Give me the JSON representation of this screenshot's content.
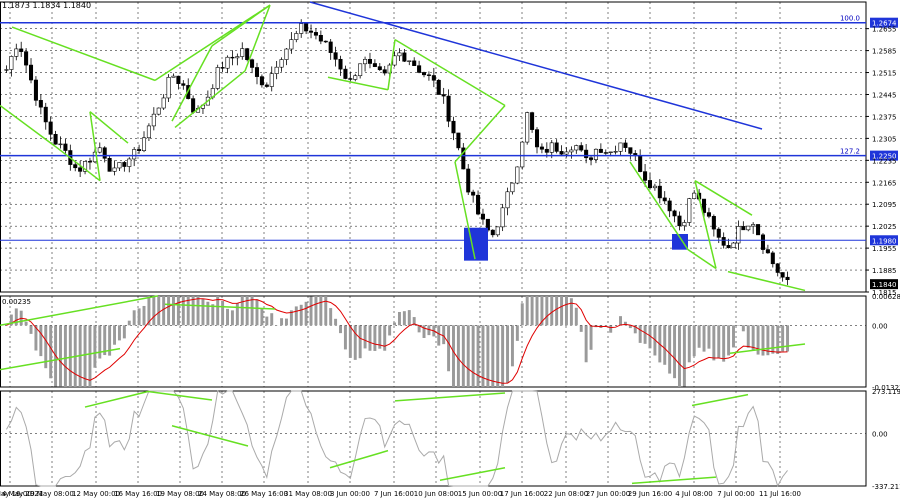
{
  "header": {
    "info": "1.1873 1.1834 1.1840"
  },
  "chart_data": {
    "type": "candlestick",
    "panels": [
      {
        "name": "price",
        "ylim": [
          1.1815,
          1.274
        ],
        "ticks": [
          "1.2655",
          "1.2585",
          "1.2515",
          "1.2445",
          "1.2375",
          "1.2305",
          "1.2235",
          "1.2165",
          "1.2095",
          "1.2025",
          "1.1955",
          "1.1885",
          "1.1815"
        ],
        "close_path": [
          1.2525,
          1.262,
          1.25,
          1.238,
          1.23,
          1.226,
          1.22,
          1.224,
          1.228,
          1.219,
          1.223,
          1.226,
          1.234,
          1.242,
          1.251,
          1.247,
          1.238,
          1.244,
          1.253,
          1.256,
          1.259,
          1.25,
          1.248,
          1.256,
          1.261,
          1.266,
          1.264,
          1.26,
          1.255,
          1.248,
          1.256,
          1.252,
          1.25,
          1.258,
          1.256,
          1.252,
          1.249,
          1.242,
          1.23,
          1.215,
          1.205,
          1.199,
          1.208,
          1.22,
          1.238,
          1.225,
          1.228,
          1.227,
          1.229,
          1.223,
          1.228,
          1.226,
          1.23,
          1.225,
          1.218,
          1.214,
          1.209,
          1.202,
          1.214,
          1.207,
          1.199,
          1.196,
          1.202,
          1.205,
          1.196,
          1.189,
          1.184
        ],
        "levels": [
          {
            "label": "1.2674",
            "value": 1.2674
          },
          {
            "label": "1.2250",
            "value": 1.225
          },
          {
            "label": "1.1980",
            "value": 1.198
          }
        ],
        "fib_labels": [
          "100.0",
          "127.2"
        ],
        "current": {
          "label": "1.1840",
          "value": 1.184
        }
      },
      {
        "name": "macd",
        "ylim": [
          -0.01323,
          0.00628
        ],
        "ticks": [
          "0.00628",
          "0.00",
          "-0.01323"
        ],
        "top_label": "0.00235"
      },
      {
        "name": "cci",
        "ylim": [
          -337.2,
          273.12
        ],
        "ticks": [
          "273.1199",
          "0.00",
          "-337.211"
        ]
      }
    ],
    "x_ticks": [
      "4 May 2021",
      "6 May 16:00",
      "9 May 08:00",
      "12 May 00:00",
      "16 May 16:00",
      "19 May 08:00",
      "24 May 08:00",
      "26 May 16:00",
      "31 May 08:00",
      "3 Jun 00:00",
      "7 Jun 16:00",
      "10 Jun 08:00",
      "15 Jun 00:00",
      "17 Jun 16:00",
      "22 Jun 08:00",
      "27 Jun 00:00",
      "29 Jun 16:00",
      "4 Jul 08:00",
      "7 Jul 00:00",
      "11 Jul 16:00"
    ],
    "colors": {
      "bull": "#ffffff",
      "bear": "#000000",
      "trend": "#66e022",
      "level": "#1f35d9",
      "grid": "#000000"
    }
  }
}
